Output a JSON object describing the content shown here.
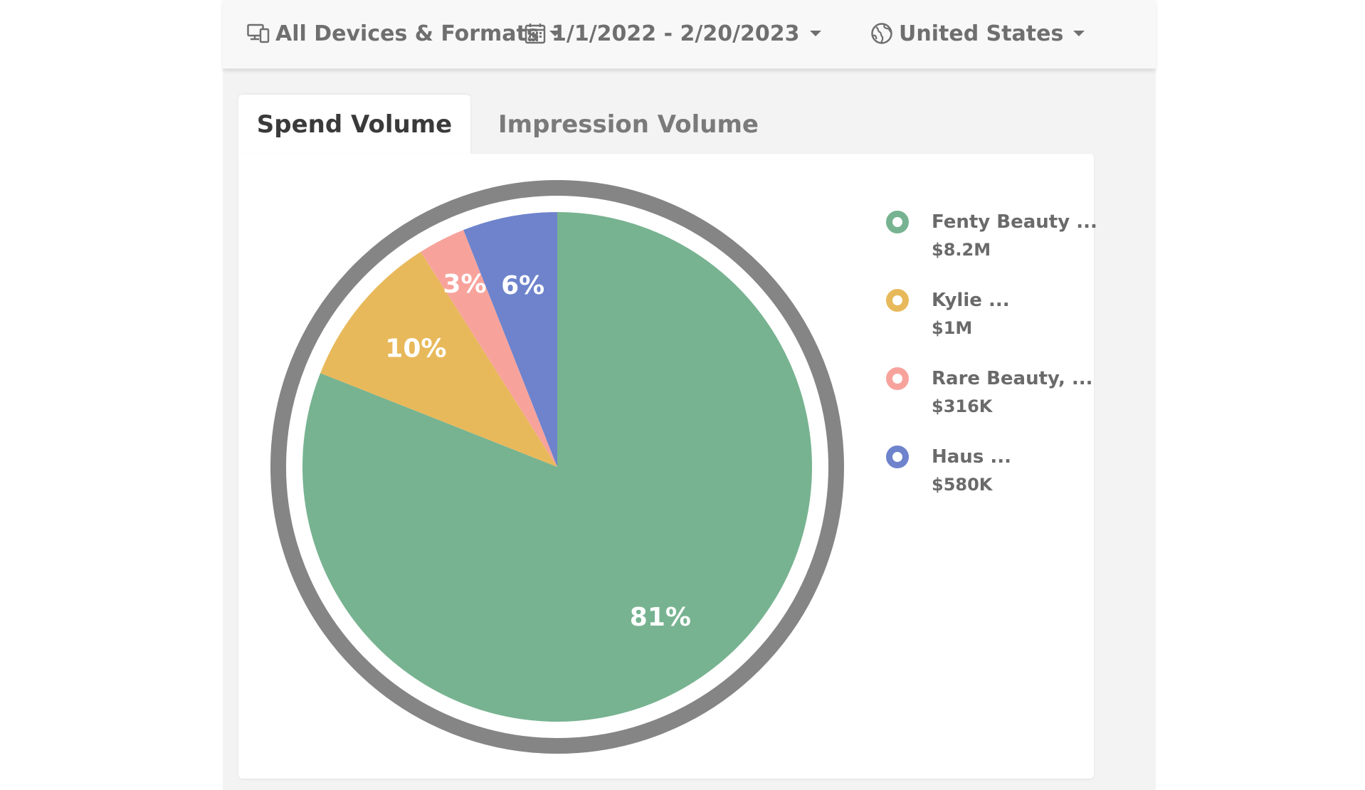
{
  "filters": {
    "devices": {
      "label": "All Devices & Formats",
      "icon": "devices-icon"
    },
    "date_range": {
      "label": "1/1/2022 - 2/20/2023",
      "icon": "calendar-icon"
    },
    "country": {
      "label": "United States",
      "icon": "globe-icon"
    }
  },
  "tabs": [
    {
      "label": "Spend Volume",
      "active": true
    },
    {
      "label": "Impression Volume",
      "active": false
    }
  ],
  "colors": {
    "outer_ring": "#858585",
    "text_muted": "#6f6f6f"
  },
  "chart_data": {
    "type": "pie",
    "title": "",
    "start": "top",
    "direction": "clockwise",
    "legend_placement": "right",
    "slices": [
      {
        "name": "Fenty Beauty ...",
        "value": "$8.2M",
        "percent": 81,
        "label": "81%",
        "color": "#77b390"
      },
      {
        "name": "Kylie ...",
        "value": "$1M",
        "percent": 10,
        "label": "10%",
        "color": "#e8b95b"
      },
      {
        "name": "Rare Beauty, ...",
        "value": "$316K",
        "percent": 3,
        "label": "3%",
        "color": "#f7a39c"
      },
      {
        "name": "Haus ...",
        "value": "$580K",
        "percent": 6,
        "label": "6%",
        "color": "#6e83cc"
      }
    ]
  }
}
